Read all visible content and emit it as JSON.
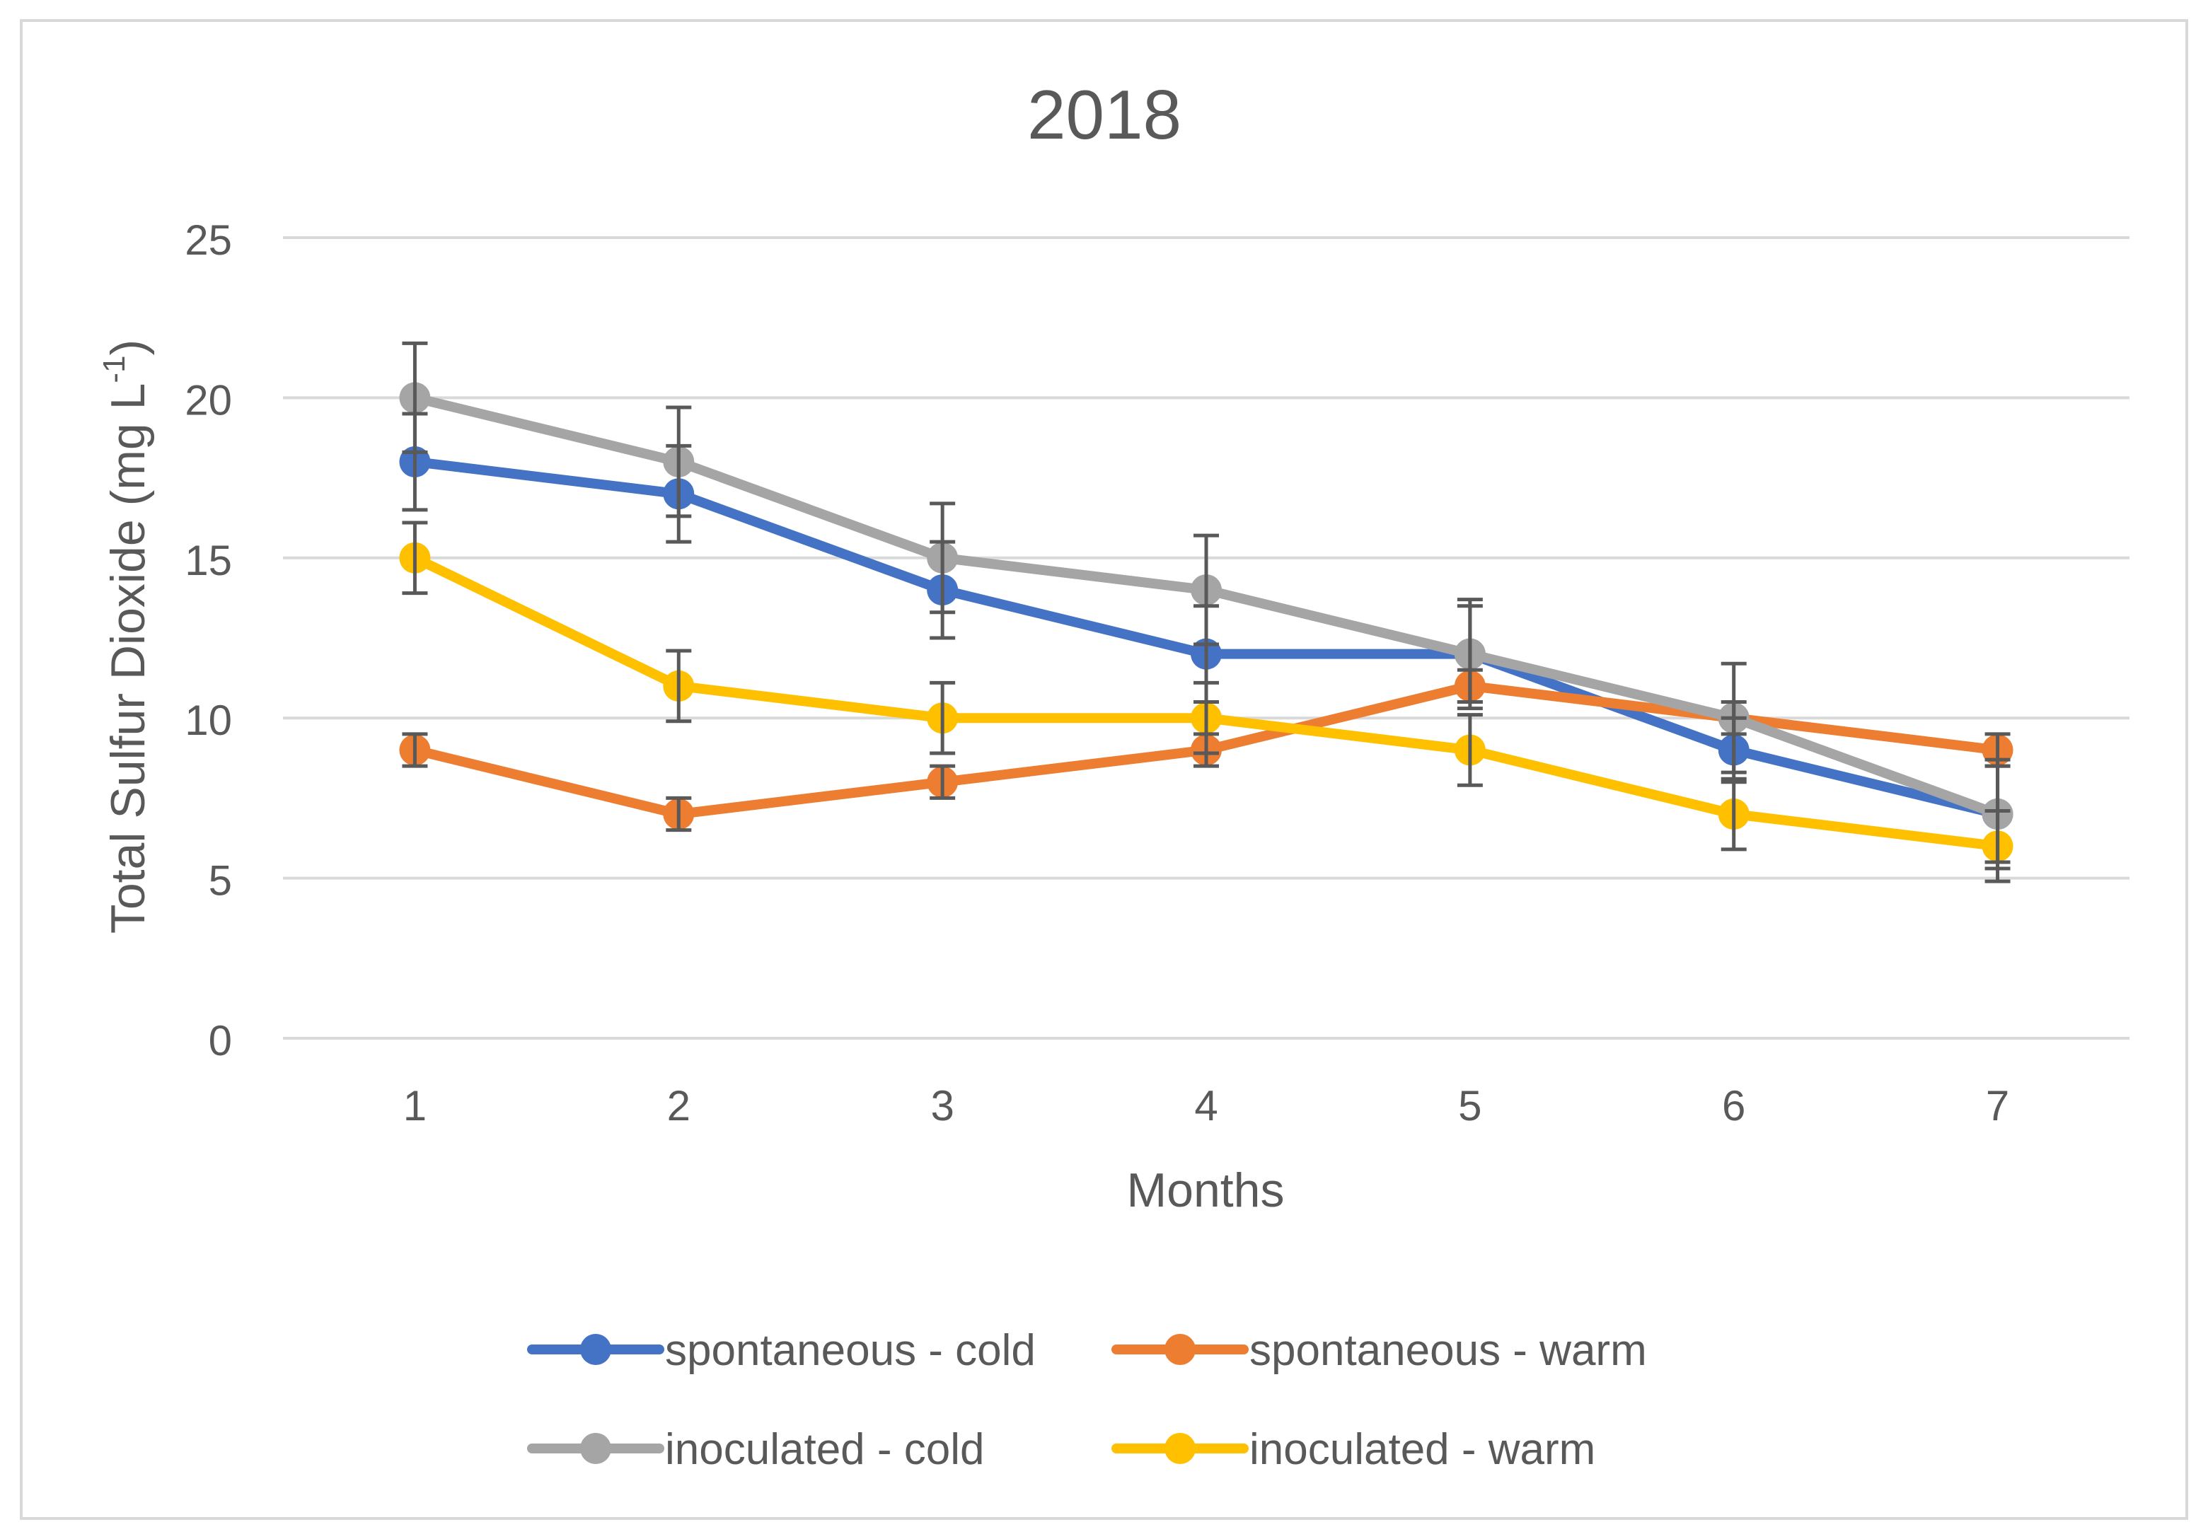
{
  "chart_data": {
    "type": "line",
    "title": "2018",
    "xlabel": "Months",
    "ylabel_main": "Total Sulfur Dioxide (mg L",
    "ylabel_sup": "-1",
    "ylabel_close": ")",
    "categories": [
      "1",
      "2",
      "3",
      "4",
      "5",
      "6",
      "7"
    ],
    "ylim": [
      0,
      25
    ],
    "yticks": [
      0,
      5,
      10,
      15,
      20,
      25
    ],
    "grid": true,
    "legend_position": "bottom",
    "series": [
      {
        "name": "spontaneous - cold",
        "color": "#4472C4",
        "values": [
          18,
          17,
          14,
          12,
          12,
          9,
          7
        ],
        "errors": [
          1.5,
          1.5,
          1.5,
          1.5,
          1.5,
          1.0,
          1.5
        ]
      },
      {
        "name": "spontaneous - warm",
        "color": "#ED7D31",
        "values": [
          9,
          7,
          8,
          9,
          11,
          10,
          9
        ],
        "errors": [
          0.5,
          0.5,
          0.5,
          0.5,
          0.5,
          0.5,
          0.5
        ]
      },
      {
        "name": "inoculated - cold",
        "color": "#A5A5A5",
        "values": [
          20,
          18,
          15,
          14,
          12,
          10,
          7
        ],
        "errors": [
          1.7,
          1.7,
          1.7,
          1.7,
          1.7,
          1.7,
          1.7
        ]
      },
      {
        "name": "inoculated - warm",
        "color": "#FFC000",
        "values": [
          15,
          11,
          10,
          10,
          9,
          7,
          6
        ],
        "errors": [
          1.1,
          1.1,
          1.1,
          1.1,
          1.1,
          1.1,
          1.1
        ]
      }
    ]
  }
}
